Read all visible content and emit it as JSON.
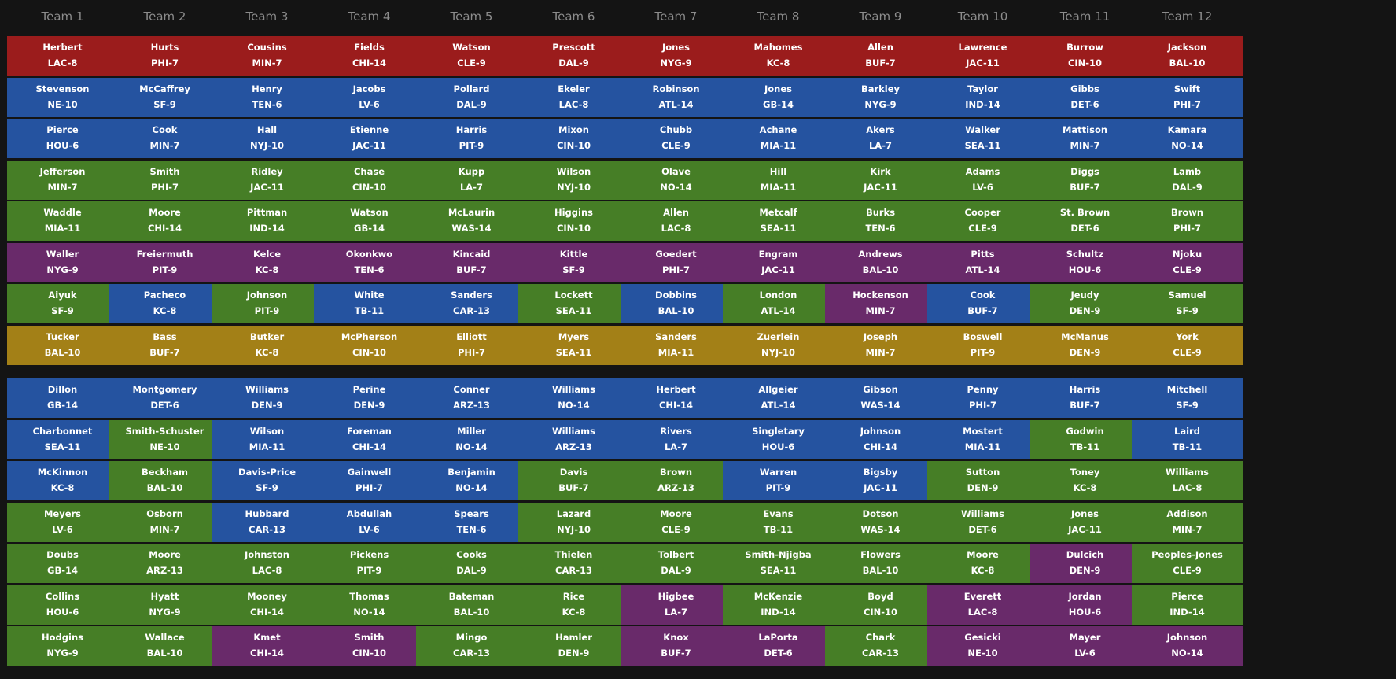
{
  "colors": {
    "background": "#141414",
    "header_text": "#8c8c8c",
    "QB": "#9b1c1c",
    "RB": "#2553a0",
    "WR": "#467e26",
    "TE": "#692a6a",
    "K": "#a38017"
  },
  "teams": [
    "Team 1",
    "Team 2",
    "Team 3",
    "Team 4",
    "Team 5",
    "Team 6",
    "Team 7",
    "Team 8",
    "Team 9",
    "Team 10",
    "Team 11",
    "Team 12"
  ],
  "rosters": [
    [
      {
        "name": "Herbert",
        "team": "LAC-8",
        "pos": "QB"
      },
      {
        "name": "Stevenson",
        "team": "NE-10",
        "pos": "RB"
      },
      {
        "name": "Pierce",
        "team": "HOU-6",
        "pos": "RB"
      },
      {
        "name": "Jefferson",
        "team": "MIN-7",
        "pos": "WR"
      },
      {
        "name": "Waddle",
        "team": "MIA-11",
        "pos": "WR"
      },
      {
        "name": "Waller",
        "team": "NYG-9",
        "pos": "TE"
      },
      {
        "name": "Aiyuk",
        "team": "SF-9",
        "pos": "WR"
      },
      {
        "name": "Tucker",
        "team": "BAL-10",
        "pos": "K"
      }
    ],
    [
      {
        "name": "Hurts",
        "team": "PHI-7",
        "pos": "QB"
      },
      {
        "name": "McCaffrey",
        "team": "SF-9",
        "pos": "RB"
      },
      {
        "name": "Cook",
        "team": "MIN-7",
        "pos": "RB"
      },
      {
        "name": "Smith",
        "team": "PHI-7",
        "pos": "WR"
      },
      {
        "name": "Moore",
        "team": "CHI-14",
        "pos": "WR"
      },
      {
        "name": "Freiermuth",
        "team": "PIT-9",
        "pos": "TE"
      },
      {
        "name": "Pacheco",
        "team": "KC-8",
        "pos": "RB"
      },
      {
        "name": "Bass",
        "team": "BUF-7",
        "pos": "K"
      }
    ],
    [
      {
        "name": "Cousins",
        "team": "MIN-7",
        "pos": "QB"
      },
      {
        "name": "Henry",
        "team": "TEN-6",
        "pos": "RB"
      },
      {
        "name": "Hall",
        "team": "NYJ-10",
        "pos": "RB"
      },
      {
        "name": "Ridley",
        "team": "JAC-11",
        "pos": "WR"
      },
      {
        "name": "Pittman",
        "team": "IND-14",
        "pos": "WR"
      },
      {
        "name": "Kelce",
        "team": "KC-8",
        "pos": "TE"
      },
      {
        "name": "Johnson",
        "team": "PIT-9",
        "pos": "WR"
      },
      {
        "name": "Butker",
        "team": "KC-8",
        "pos": "K"
      }
    ],
    [
      {
        "name": "Fields",
        "team": "CHI-14",
        "pos": "QB"
      },
      {
        "name": "Jacobs",
        "team": "LV-6",
        "pos": "RB"
      },
      {
        "name": "Etienne",
        "team": "JAC-11",
        "pos": "RB"
      },
      {
        "name": "Chase",
        "team": "CIN-10",
        "pos": "WR"
      },
      {
        "name": "Watson",
        "team": "GB-14",
        "pos": "WR"
      },
      {
        "name": "Okonkwo",
        "team": "TEN-6",
        "pos": "TE"
      },
      {
        "name": "White",
        "team": "TB-11",
        "pos": "RB"
      },
      {
        "name": "McPherson",
        "team": "CIN-10",
        "pos": "K"
      }
    ],
    [
      {
        "name": "Watson",
        "team": "CLE-9",
        "pos": "QB"
      },
      {
        "name": "Pollard",
        "team": "DAL-9",
        "pos": "RB"
      },
      {
        "name": "Harris",
        "team": "PIT-9",
        "pos": "RB"
      },
      {
        "name": "Kupp",
        "team": "LA-7",
        "pos": "WR"
      },
      {
        "name": "McLaurin",
        "team": "WAS-14",
        "pos": "WR"
      },
      {
        "name": "Kincaid",
        "team": "BUF-7",
        "pos": "TE"
      },
      {
        "name": "Sanders",
        "team": "CAR-13",
        "pos": "RB"
      },
      {
        "name": "Elliott",
        "team": "PHI-7",
        "pos": "K"
      }
    ],
    [
      {
        "name": "Prescott",
        "team": "DAL-9",
        "pos": "QB"
      },
      {
        "name": "Ekeler",
        "team": "LAC-8",
        "pos": "RB"
      },
      {
        "name": "Mixon",
        "team": "CIN-10",
        "pos": "RB"
      },
      {
        "name": "Wilson",
        "team": "NYJ-10",
        "pos": "WR"
      },
      {
        "name": "Higgins",
        "team": "CIN-10",
        "pos": "WR"
      },
      {
        "name": "Kittle",
        "team": "SF-9",
        "pos": "TE"
      },
      {
        "name": "Lockett",
        "team": "SEA-11",
        "pos": "WR"
      },
      {
        "name": "Myers",
        "team": "SEA-11",
        "pos": "K"
      }
    ],
    [
      {
        "name": "Jones",
        "team": "NYG-9",
        "pos": "QB"
      },
      {
        "name": "Robinson",
        "team": "ATL-14",
        "pos": "RB"
      },
      {
        "name": "Chubb",
        "team": "CLE-9",
        "pos": "RB"
      },
      {
        "name": "Olave",
        "team": "NO-14",
        "pos": "WR"
      },
      {
        "name": "Allen",
        "team": "LAC-8",
        "pos": "WR"
      },
      {
        "name": "Goedert",
        "team": "PHI-7",
        "pos": "TE"
      },
      {
        "name": "Dobbins",
        "team": "BAL-10",
        "pos": "RB"
      },
      {
        "name": "Sanders",
        "team": "MIA-11",
        "pos": "K"
      }
    ],
    [
      {
        "name": "Mahomes",
        "team": "KC-8",
        "pos": "QB"
      },
      {
        "name": "Jones",
        "team": "GB-14",
        "pos": "RB"
      },
      {
        "name": "Achane",
        "team": "MIA-11",
        "pos": "RB"
      },
      {
        "name": "Hill",
        "team": "MIA-11",
        "pos": "WR"
      },
      {
        "name": "Metcalf",
        "team": "SEA-11",
        "pos": "WR"
      },
      {
        "name": "Engram",
        "team": "JAC-11",
        "pos": "TE"
      },
      {
        "name": "London",
        "team": "ATL-14",
        "pos": "WR"
      },
      {
        "name": "Zuerlein",
        "team": "NYJ-10",
        "pos": "K"
      }
    ],
    [
      {
        "name": "Allen",
        "team": "BUF-7",
        "pos": "QB"
      },
      {
        "name": "Barkley",
        "team": "NYG-9",
        "pos": "RB"
      },
      {
        "name": "Akers",
        "team": "LA-7",
        "pos": "RB"
      },
      {
        "name": "Kirk",
        "team": "JAC-11",
        "pos": "WR"
      },
      {
        "name": "Burks",
        "team": "TEN-6",
        "pos": "WR"
      },
      {
        "name": "Andrews",
        "team": "BAL-10",
        "pos": "TE"
      },
      {
        "name": "Hockenson",
        "team": "MIN-7",
        "pos": "TE"
      },
      {
        "name": "Joseph",
        "team": "MIN-7",
        "pos": "K"
      }
    ],
    [
      {
        "name": "Lawrence",
        "team": "JAC-11",
        "pos": "QB"
      },
      {
        "name": "Taylor",
        "team": "IND-14",
        "pos": "RB"
      },
      {
        "name": "Walker",
        "team": "SEA-11",
        "pos": "RB"
      },
      {
        "name": "Adams",
        "team": "LV-6",
        "pos": "WR"
      },
      {
        "name": "Cooper",
        "team": "CLE-9",
        "pos": "WR"
      },
      {
        "name": "Pitts",
        "team": "ATL-14",
        "pos": "TE"
      },
      {
        "name": "Cook",
        "team": "BUF-7",
        "pos": "RB"
      },
      {
        "name": "Boswell",
        "team": "PIT-9",
        "pos": "K"
      }
    ],
    [
      {
        "name": "Burrow",
        "team": "CIN-10",
        "pos": "QB"
      },
      {
        "name": "Gibbs",
        "team": "DET-6",
        "pos": "RB"
      },
      {
        "name": "Mattison",
        "team": "MIN-7",
        "pos": "RB"
      },
      {
        "name": "Diggs",
        "team": "BUF-7",
        "pos": "WR"
      },
      {
        "name": "St. Brown",
        "team": "DET-6",
        "pos": "WR"
      },
      {
        "name": "Schultz",
        "team": "HOU-6",
        "pos": "TE"
      },
      {
        "name": "Jeudy",
        "team": "DEN-9",
        "pos": "WR"
      },
      {
        "name": "McManus",
        "team": "DEN-9",
        "pos": "K"
      }
    ],
    [
      {
        "name": "Jackson",
        "team": "BAL-10",
        "pos": "QB"
      },
      {
        "name": "Swift",
        "team": "PHI-7",
        "pos": "RB"
      },
      {
        "name": "Kamara",
        "team": "NO-14",
        "pos": "RB"
      },
      {
        "name": "Lamb",
        "team": "DAL-9",
        "pos": "WR"
      },
      {
        "name": "Brown",
        "team": "PHI-7",
        "pos": "WR"
      },
      {
        "name": "Njoku",
        "team": "CLE-9",
        "pos": "TE"
      },
      {
        "name": "Samuel",
        "team": "SF-9",
        "pos": "WR"
      },
      {
        "name": "York",
        "team": "CLE-9",
        "pos": "K"
      }
    ]
  ],
  "bench": [
    [
      {
        "name": "Dillon",
        "team": "GB-14",
        "pos": "RB"
      },
      {
        "name": "Charbonnet",
        "team": "SEA-11",
        "pos": "RB"
      },
      {
        "name": "McKinnon",
        "team": "KC-8",
        "pos": "RB"
      },
      {
        "name": "Meyers",
        "team": "LV-6",
        "pos": "WR"
      },
      {
        "name": "Doubs",
        "team": "GB-14",
        "pos": "WR"
      },
      {
        "name": "Collins",
        "team": "HOU-6",
        "pos": "WR"
      },
      {
        "name": "Hodgins",
        "team": "NYG-9",
        "pos": "WR"
      }
    ],
    [
      {
        "name": "Montgomery",
        "team": "DET-6",
        "pos": "RB"
      },
      {
        "name": "Smith-Schuster",
        "team": "NE-10",
        "pos": "WR"
      },
      {
        "name": "Beckham",
        "team": "BAL-10",
        "pos": "WR"
      },
      {
        "name": "Osborn",
        "team": "MIN-7",
        "pos": "WR"
      },
      {
        "name": "Moore",
        "team": "ARZ-13",
        "pos": "WR"
      },
      {
        "name": "Hyatt",
        "team": "NYG-9",
        "pos": "WR"
      },
      {
        "name": "Wallace",
        "team": "BAL-10",
        "pos": "WR"
      }
    ],
    [
      {
        "name": "Williams",
        "team": "DEN-9",
        "pos": "RB"
      },
      {
        "name": "Wilson",
        "team": "MIA-11",
        "pos": "RB"
      },
      {
        "name": "Davis-Price",
        "team": "SF-9",
        "pos": "RB"
      },
      {
        "name": "Hubbard",
        "team": "CAR-13",
        "pos": "RB"
      },
      {
        "name": "Johnston",
        "team": "LAC-8",
        "pos": "WR"
      },
      {
        "name": "Mooney",
        "team": "CHI-14",
        "pos": "WR"
      },
      {
        "name": "Kmet",
        "team": "CHI-14",
        "pos": "TE"
      }
    ],
    [
      {
        "name": "Perine",
        "team": "DEN-9",
        "pos": "RB"
      },
      {
        "name": "Foreman",
        "team": "CHI-14",
        "pos": "RB"
      },
      {
        "name": "Gainwell",
        "team": "PHI-7",
        "pos": "RB"
      },
      {
        "name": "Abdullah",
        "team": "LV-6",
        "pos": "RB"
      },
      {
        "name": "Pickens",
        "team": "PIT-9",
        "pos": "WR"
      },
      {
        "name": "Thomas",
        "team": "NO-14",
        "pos": "WR"
      },
      {
        "name": "Smith",
        "team": "CIN-10",
        "pos": "TE"
      }
    ],
    [
      {
        "name": "Conner",
        "team": "ARZ-13",
        "pos": "RB"
      },
      {
        "name": "Miller",
        "team": "NO-14",
        "pos": "RB"
      },
      {
        "name": "Benjamin",
        "team": "NO-14",
        "pos": "RB"
      },
      {
        "name": "Spears",
        "team": "TEN-6",
        "pos": "RB"
      },
      {
        "name": "Cooks",
        "team": "DAL-9",
        "pos": "WR"
      },
      {
        "name": "Bateman",
        "team": "BAL-10",
        "pos": "WR"
      },
      {
        "name": "Mingo",
        "team": "CAR-13",
        "pos": "WR"
      }
    ],
    [
      {
        "name": "Williams",
        "team": "NO-14",
        "pos": "RB"
      },
      {
        "name": "Williams",
        "team": "ARZ-13",
        "pos": "RB"
      },
      {
        "name": "Davis",
        "team": "BUF-7",
        "pos": "WR"
      },
      {
        "name": "Lazard",
        "team": "NYJ-10",
        "pos": "WR"
      },
      {
        "name": "Thielen",
        "team": "CAR-13",
        "pos": "WR"
      },
      {
        "name": "Rice",
        "team": "KC-8",
        "pos": "WR"
      },
      {
        "name": "Hamler",
        "team": "DEN-9",
        "pos": "WR"
      }
    ],
    [
      {
        "name": "Herbert",
        "team": "CHI-14",
        "pos": "RB"
      },
      {
        "name": "Rivers",
        "team": "LA-7",
        "pos": "RB"
      },
      {
        "name": "Brown",
        "team": "ARZ-13",
        "pos": "WR"
      },
      {
        "name": "Moore",
        "team": "CLE-9",
        "pos": "WR"
      },
      {
        "name": "Tolbert",
        "team": "DAL-9",
        "pos": "WR"
      },
      {
        "name": "Higbee",
        "team": "LA-7",
        "pos": "TE"
      },
      {
        "name": "Knox",
        "team": "BUF-7",
        "pos": "TE"
      }
    ],
    [
      {
        "name": "Allgeier",
        "team": "ATL-14",
        "pos": "RB"
      },
      {
        "name": "Singletary",
        "team": "HOU-6",
        "pos": "RB"
      },
      {
        "name": "Warren",
        "team": "PIT-9",
        "pos": "RB"
      },
      {
        "name": "Evans",
        "team": "TB-11",
        "pos": "WR"
      },
      {
        "name": "Smith-Njigba",
        "team": "SEA-11",
        "pos": "WR"
      },
      {
        "name": "McKenzie",
        "team": "IND-14",
        "pos": "WR"
      },
      {
        "name": "LaPorta",
        "team": "DET-6",
        "pos": "TE"
      }
    ],
    [
      {
        "name": "Gibson",
        "team": "WAS-14",
        "pos": "RB"
      },
      {
        "name": "Johnson",
        "team": "CHI-14",
        "pos": "RB"
      },
      {
        "name": "Bigsby",
        "team": "JAC-11",
        "pos": "RB"
      },
      {
        "name": "Dotson",
        "team": "WAS-14",
        "pos": "WR"
      },
      {
        "name": "Flowers",
        "team": "BAL-10",
        "pos": "WR"
      },
      {
        "name": "Boyd",
        "team": "CIN-10",
        "pos": "WR"
      },
      {
        "name": "Chark",
        "team": "CAR-13",
        "pos": "WR"
      }
    ],
    [
      {
        "name": "Penny",
        "team": "PHI-7",
        "pos": "RB"
      },
      {
        "name": "Mostert",
        "team": "MIA-11",
        "pos": "RB"
      },
      {
        "name": "Sutton",
        "team": "DEN-9",
        "pos": "WR"
      },
      {
        "name": "Williams",
        "team": "DET-6",
        "pos": "WR"
      },
      {
        "name": "Moore",
        "team": "KC-8",
        "pos": "WR"
      },
      {
        "name": "Everett",
        "team": "LAC-8",
        "pos": "TE"
      },
      {
        "name": "Gesicki",
        "team": "NE-10",
        "pos": "TE"
      }
    ],
    [
      {
        "name": "Harris",
        "team": "BUF-7",
        "pos": "RB"
      },
      {
        "name": "Godwin",
        "team": "TB-11",
        "pos": "WR"
      },
      {
        "name": "Toney",
        "team": "KC-8",
        "pos": "WR"
      },
      {
        "name": "Jones",
        "team": "JAC-11",
        "pos": "WR"
      },
      {
        "name": "Dulcich",
        "team": "DEN-9",
        "pos": "TE"
      },
      {
        "name": "Jordan",
        "team": "HOU-6",
        "pos": "TE"
      },
      {
        "name": "Mayer",
        "team": "LV-6",
        "pos": "TE"
      }
    ],
    [
      {
        "name": "Mitchell",
        "team": "SF-9",
        "pos": "RB"
      },
      {
        "name": "Laird",
        "team": "TB-11",
        "pos": "RB"
      },
      {
        "name": "Williams",
        "team": "LAC-8",
        "pos": "WR"
      },
      {
        "name": "Addison",
        "team": "MIN-7",
        "pos": "WR"
      },
      {
        "name": "Peoples-Jones",
        "team": "CLE-9",
        "pos": "WR"
      },
      {
        "name": "Pierce",
        "team": "IND-14",
        "pos": "WR"
      },
      {
        "name": "Johnson",
        "team": "NO-14",
        "pos": "TE"
      }
    ]
  ]
}
